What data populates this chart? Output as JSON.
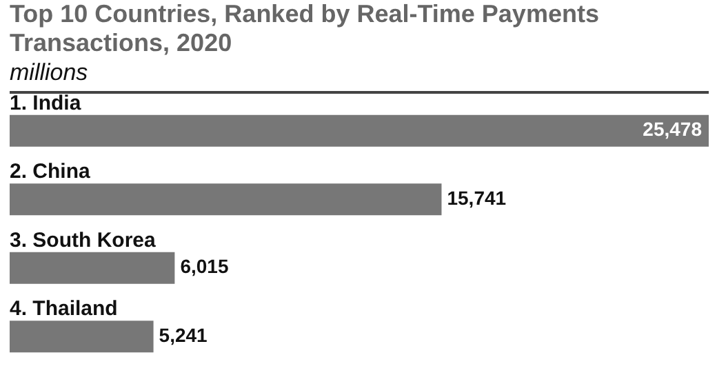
{
  "chart_data": {
    "type": "bar",
    "orientation": "horizontal",
    "title": "Top 10 Countries, Ranked by Real-Time Payments Transactions, 2020",
    "subtitle": "millions",
    "categories": [
      "1. India",
      "2. China",
      "3. South Korea",
      "4. Thailand"
    ],
    "values": [
      25478,
      15741,
      6015,
      5241
    ],
    "color": "#777777",
    "value_labels": [
      "25,478",
      "15,741",
      "6,015",
      "5,241"
    ]
  }
}
